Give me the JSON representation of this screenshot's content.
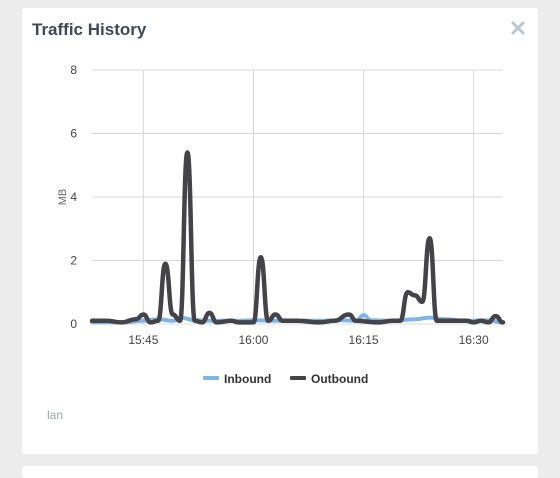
{
  "panel": {
    "title": "Traffic History",
    "close_icon": "close-x-icon",
    "footer_label": "lan"
  },
  "colors": {
    "inbound": "#7cb5ec",
    "outbound": "#434348",
    "grid": "#d8d8d8",
    "close": "#b8c7cf"
  },
  "chart_data": {
    "type": "line",
    "title": "",
    "xlabel": "",
    "ylabel": "MB",
    "ylim": [
      0,
      8
    ],
    "y_ticks": [
      0,
      2,
      4,
      6,
      8
    ],
    "xlim": [
      "15:38",
      "16:34"
    ],
    "x_ticks": [
      "15:45",
      "16:00",
      "16:15",
      "16:30"
    ],
    "grid": true,
    "legend_position": "bottom-center",
    "series": [
      {
        "name": "Inbound",
        "color": "#7cb5ec",
        "points": [
          [
            "15:38",
            0.05
          ],
          [
            "15:42",
            0.05
          ],
          [
            "15:45",
            0.1
          ],
          [
            "15:47",
            0.15
          ],
          [
            "15:49",
            0.1
          ],
          [
            "15:50",
            0.2
          ],
          [
            "15:52",
            0.12
          ],
          [
            "15:55",
            0.1
          ],
          [
            "15:58",
            0.1
          ],
          [
            "16:00",
            0.12
          ],
          [
            "16:03",
            0.1
          ],
          [
            "16:06",
            0.1
          ],
          [
            "16:09",
            0.1
          ],
          [
            "16:12",
            0.12
          ],
          [
            "16:14",
            0.1
          ],
          [
            "16:15",
            0.28
          ],
          [
            "16:16",
            0.12
          ],
          [
            "16:19",
            0.1
          ],
          [
            "16:22",
            0.15
          ],
          [
            "16:24",
            0.2
          ],
          [
            "16:26",
            0.15
          ],
          [
            "16:29",
            0.1
          ],
          [
            "16:32",
            0.12
          ],
          [
            "16:34",
            0.05
          ]
        ]
      },
      {
        "name": "Outbound",
        "color": "#434348",
        "points": [
          [
            "15:38",
            0.1
          ],
          [
            "15:40",
            0.1
          ],
          [
            "15:42",
            0.05
          ],
          [
            "15:44",
            0.15
          ],
          [
            "15:45",
            0.3
          ],
          [
            "15:46",
            0.05
          ],
          [
            "15:47",
            0.1
          ],
          [
            "15:48",
            1.9
          ],
          [
            "15:49",
            0.3
          ],
          [
            "15:50",
            0.1
          ],
          [
            "15:51",
            5.4
          ],
          [
            "15:52",
            0.1
          ],
          [
            "15:53",
            0.05
          ],
          [
            "15:54",
            0.35
          ],
          [
            "15:55",
            0.05
          ],
          [
            "15:57",
            0.1
          ],
          [
            "15:58",
            0.05
          ],
          [
            "15:59",
            0.05
          ],
          [
            "16:00",
            0.05
          ],
          [
            "16:01",
            2.1
          ],
          [
            "16:02",
            0.1
          ],
          [
            "16:03",
            0.3
          ],
          [
            "16:04",
            0.1
          ],
          [
            "16:06",
            0.1
          ],
          [
            "16:09",
            0.05
          ],
          [
            "16:11",
            0.1
          ],
          [
            "16:13",
            0.3
          ],
          [
            "16:14",
            0.1
          ],
          [
            "16:17",
            0.05
          ],
          [
            "16:19",
            0.1
          ],
          [
            "16:20",
            0.1
          ],
          [
            "16:21",
            1.0
          ],
          [
            "16:22",
            0.9
          ],
          [
            "16:23",
            0.7
          ],
          [
            "16:24",
            2.7
          ],
          [
            "16:25",
            0.1
          ],
          [
            "16:27",
            0.1
          ],
          [
            "16:29",
            0.1
          ],
          [
            "16:30",
            0.05
          ],
          [
            "16:31",
            0.1
          ],
          [
            "16:32",
            0.05
          ],
          [
            "16:33",
            0.25
          ],
          [
            "16:34",
            0.05
          ]
        ]
      }
    ]
  }
}
